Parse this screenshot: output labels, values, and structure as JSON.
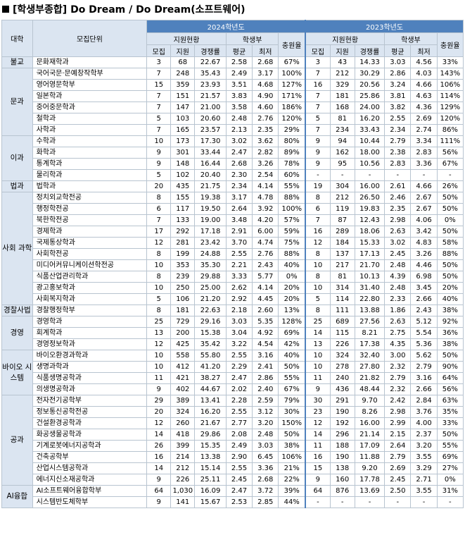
{
  "title": "[학생부종합] Do Dream / Do Dream(소프트웨어)",
  "headers": {
    "college": "대학",
    "unit": "모집단위",
    "year2024": "2024학년도",
    "year2023": "2023학년도",
    "apply": "지원현황",
    "grade": "학생부",
    "fill": "충원율",
    "recruit": "모집",
    "applicants": "지원",
    "ratio": "경쟁률",
    "avg": "평균",
    "min": "최저"
  },
  "groups": [
    {
      "name": "불교",
      "rows": [
        {
          "dept": "문화재학과",
          "a": [
            "3",
            "68",
            "22.67",
            "2.58",
            "2.68",
            "67%"
          ],
          "b": [
            "3",
            "43",
            "14.33",
            "3.03",
            "4.56",
            "33%"
          ]
        }
      ]
    },
    {
      "name": "문과",
      "rows": [
        {
          "dept": "국어국문·문예창작학부",
          "a": [
            "7",
            "248",
            "35.43",
            "2.49",
            "3.17",
            "100%"
          ],
          "b": [
            "7",
            "212",
            "30.29",
            "2.86",
            "4.03",
            "143%"
          ]
        },
        {
          "dept": "영어영문학부",
          "a": [
            "15",
            "359",
            "23.93",
            "3.51",
            "4.68",
            "127%"
          ],
          "b": [
            "16",
            "329",
            "20.56",
            "3.24",
            "4.66",
            "106%"
          ]
        },
        {
          "dept": "일본학과",
          "a": [
            "7",
            "151",
            "21.57",
            "3.83",
            "4.90",
            "171%"
          ],
          "b": [
            "7",
            "181",
            "25.86",
            "3.81",
            "4.63",
            "114%"
          ]
        },
        {
          "dept": "중어중문학과",
          "a": [
            "7",
            "147",
            "21.00",
            "3.58",
            "4.60",
            "186%"
          ],
          "b": [
            "7",
            "168",
            "24.00",
            "3.82",
            "4.36",
            "129%"
          ]
        },
        {
          "dept": "철학과",
          "a": [
            "5",
            "103",
            "20.60",
            "2.48",
            "2.76",
            "120%"
          ],
          "b": [
            "5",
            "81",
            "16.20",
            "2.55",
            "2.69",
            "120%"
          ]
        },
        {
          "dept": "사학과",
          "a": [
            "7",
            "165",
            "23.57",
            "2.13",
            "2.35",
            "29%"
          ],
          "b": [
            "7",
            "234",
            "33.43",
            "2.34",
            "2.74",
            "86%"
          ]
        }
      ]
    },
    {
      "name": "이과",
      "rows": [
        {
          "dept": "수학과",
          "a": [
            "10",
            "173",
            "17.30",
            "3.02",
            "3.62",
            "80%"
          ],
          "b": [
            "9",
            "94",
            "10.44",
            "2.79",
            "3.34",
            "111%"
          ]
        },
        {
          "dept": "화학과",
          "a": [
            "9",
            "301",
            "33.44",
            "2.47",
            "2.82",
            "89%"
          ],
          "b": [
            "9",
            "162",
            "18.00",
            "2.38",
            "2.83",
            "56%"
          ]
        },
        {
          "dept": "통계학과",
          "a": [
            "9",
            "148",
            "16.44",
            "2.68",
            "3.26",
            "78%"
          ],
          "b": [
            "9",
            "95",
            "10.56",
            "2.83",
            "3.36",
            "67%"
          ]
        },
        {
          "dept": "물리학과",
          "a": [
            "5",
            "102",
            "20.40",
            "2.30",
            "2.54",
            "60%"
          ],
          "b": [
            "-",
            "-",
            "-",
            "-",
            "-",
            "-"
          ]
        }
      ]
    },
    {
      "name": "법과",
      "rows": [
        {
          "dept": "법학과",
          "a": [
            "20",
            "435",
            "21.75",
            "2.34",
            "4.14",
            "55%"
          ],
          "b": [
            "19",
            "304",
            "16.00",
            "2.61",
            "4.66",
            "26%"
          ]
        }
      ]
    },
    {
      "name": "사회 과학",
      "rows": [
        {
          "dept": "정치외교학전공",
          "a": [
            "8",
            "155",
            "19.38",
            "3.17",
            "4.78",
            "88%"
          ],
          "b": [
            "8",
            "212",
            "26.50",
            "2.46",
            "2.67",
            "50%"
          ]
        },
        {
          "dept": "행정학전공",
          "a": [
            "6",
            "117",
            "19.50",
            "2.64",
            "3.92",
            "100%"
          ],
          "b": [
            "6",
            "119",
            "19.83",
            "2.35",
            "2.67",
            "50%"
          ]
        },
        {
          "dept": "북한학전공",
          "a": [
            "7",
            "133",
            "19.00",
            "3.48",
            "4.20",
            "57%"
          ],
          "b": [
            "7",
            "87",
            "12.43",
            "2.98",
            "4.06",
            "0%"
          ]
        },
        {
          "dept": "경제학과",
          "a": [
            "17",
            "292",
            "17.18",
            "2.91",
            "6.00",
            "59%"
          ],
          "b": [
            "16",
            "289",
            "18.06",
            "2.63",
            "3.42",
            "50%"
          ]
        },
        {
          "dept": "국제통상학과",
          "a": [
            "12",
            "281",
            "23.42",
            "3.70",
            "4.74",
            "75%"
          ],
          "b": [
            "12",
            "184",
            "15.33",
            "3.02",
            "4.83",
            "58%"
          ]
        },
        {
          "dept": "사회학전공",
          "a": [
            "8",
            "199",
            "24.88",
            "2.55",
            "2.76",
            "88%"
          ],
          "b": [
            "8",
            "137",
            "17.13",
            "2.45",
            "3.26",
            "88%"
          ]
        },
        {
          "dept": "미디어커뮤니케이션학전공",
          "a": [
            "10",
            "353",
            "35.30",
            "2.21",
            "2.43",
            "40%"
          ],
          "b": [
            "10",
            "217",
            "21.70",
            "2.48",
            "4.46",
            "50%"
          ]
        },
        {
          "dept": "식품산업관리학과",
          "a": [
            "8",
            "239",
            "29.88",
            "3.33",
            "5.77",
            "0%"
          ],
          "b": [
            "8",
            "81",
            "10.13",
            "4.39",
            "6.98",
            "50%"
          ]
        },
        {
          "dept": "광고홍보학과",
          "a": [
            "10",
            "250",
            "25.00",
            "2.62",
            "4.14",
            "20%"
          ],
          "b": [
            "10",
            "314",
            "31.40",
            "2.48",
            "3.45",
            "20%"
          ]
        },
        {
          "dept": "사회복지학과",
          "a": [
            "5",
            "106",
            "21.20",
            "2.92",
            "4.45",
            "20%"
          ],
          "b": [
            "5",
            "114",
            "22.80",
            "2.33",
            "2.66",
            "40%"
          ]
        }
      ]
    },
    {
      "name": "경찰사법",
      "rows": [
        {
          "dept": "경찰행정학부",
          "a": [
            "8",
            "181",
            "22.63",
            "2.18",
            "2.60",
            "13%"
          ],
          "b": [
            "8",
            "111",
            "13.88",
            "1.86",
            "2.43",
            "38%"
          ]
        }
      ]
    },
    {
      "name": "경영",
      "rows": [
        {
          "dept": "경영학과",
          "a": [
            "25",
            "729",
            "29.16",
            "3.03",
            "5.35",
            "128%"
          ],
          "b": [
            "25",
            "689",
            "27.56",
            "2.63",
            "5.12",
            "92%"
          ]
        },
        {
          "dept": "회계학과",
          "a": [
            "13",
            "200",
            "15.38",
            "3.04",
            "4.92",
            "69%"
          ],
          "b": [
            "14",
            "115",
            "8.21",
            "2.75",
            "5.54",
            "36%"
          ]
        },
        {
          "dept": "경영정보학과",
          "a": [
            "12",
            "425",
            "35.42",
            "3.22",
            "4.54",
            "42%"
          ],
          "b": [
            "13",
            "226",
            "17.38",
            "4.35",
            "5.36",
            "38%"
          ]
        }
      ]
    },
    {
      "name": "바이오 시스템",
      "rows": [
        {
          "dept": "바이오환경과학과",
          "a": [
            "10",
            "558",
            "55.80",
            "2.55",
            "3.16",
            "40%"
          ],
          "b": [
            "10",
            "324",
            "32.40",
            "3.00",
            "5.62",
            "50%"
          ]
        },
        {
          "dept": "생명과학과",
          "a": [
            "10",
            "412",
            "41.20",
            "2.29",
            "2.41",
            "50%"
          ],
          "b": [
            "10",
            "278",
            "27.80",
            "2.32",
            "2.79",
            "90%"
          ]
        },
        {
          "dept": "식품생명공학과",
          "a": [
            "11",
            "421",
            "38.27",
            "2.47",
            "2.86",
            "55%"
          ],
          "b": [
            "11",
            "240",
            "21.82",
            "2.79",
            "3.16",
            "64%"
          ]
        },
        {
          "dept": "의생명공학과",
          "a": [
            "9",
            "402",
            "44.67",
            "2.02",
            "2.40",
            "67%"
          ],
          "b": [
            "9",
            "436",
            "48.44",
            "2.32",
            "2.66",
            "56%"
          ]
        }
      ]
    },
    {
      "name": "공과",
      "rows": [
        {
          "dept": "전자전기공학부",
          "a": [
            "29",
            "389",
            "13.41",
            "2.28",
            "2.59",
            "79%"
          ],
          "b": [
            "30",
            "291",
            "9.70",
            "2.42",
            "2.84",
            "63%"
          ]
        },
        {
          "dept": "정보통신공학전공",
          "a": [
            "20",
            "324",
            "16.20",
            "2.55",
            "3.12",
            "30%"
          ],
          "b": [
            "23",
            "190",
            "8.26",
            "2.98",
            "3.76",
            "35%"
          ]
        },
        {
          "dept": "건설환경공학과",
          "a": [
            "12",
            "260",
            "21.67",
            "2.77",
            "3.20",
            "150%"
          ],
          "b": [
            "12",
            "192",
            "16.00",
            "2.99",
            "4.00",
            "33%"
          ]
        },
        {
          "dept": "화공생물공학과",
          "a": [
            "14",
            "418",
            "29.86",
            "2.08",
            "2.48",
            "50%"
          ],
          "b": [
            "14",
            "296",
            "21.14",
            "2.15",
            "2.37",
            "50%"
          ]
        },
        {
          "dept": "기계로봇에너지공학과",
          "a": [
            "26",
            "399",
            "15.35",
            "2.49",
            "3.03",
            "38%"
          ],
          "b": [
            "11",
            "188",
            "17.09",
            "2.64",
            "3.20",
            "55%"
          ]
        },
        {
          "dept": "건축공학부",
          "a": [
            "16",
            "214",
            "13.38",
            "2.90",
            "6.45",
            "106%"
          ],
          "b": [
            "16",
            "190",
            "11.88",
            "2.79",
            "3.55",
            "69%"
          ]
        },
        {
          "dept": "산업시스템공학과",
          "a": [
            "14",
            "212",
            "15.14",
            "2.55",
            "3.36",
            "21%"
          ],
          "b": [
            "15",
            "138",
            "9.20",
            "2.69",
            "3.29",
            "27%"
          ]
        },
        {
          "dept": "에너지신소재공학과",
          "a": [
            "9",
            "226",
            "25.11",
            "2.45",
            "2.68",
            "22%"
          ],
          "b": [
            "9",
            "160",
            "17.78",
            "2.45",
            "2.71",
            "0%"
          ]
        }
      ]
    },
    {
      "name": "AI융합",
      "rows": [
        {
          "dept": "AI소프트웨어융합학부",
          "a": [
            "64",
            "1,030",
            "16.09",
            "2.47",
            "3.72",
            "39%"
          ],
          "b": [
            "64",
            "876",
            "13.69",
            "2.50",
            "3.55",
            "31%"
          ]
        },
        {
          "dept": "시스템반도체학부",
          "a": [
            "9",
            "141",
            "15.67",
            "2.53",
            "2.85",
            "44%"
          ],
          "b": [
            "-",
            "-",
            "-",
            "-",
            "-",
            "-"
          ]
        }
      ]
    }
  ]
}
